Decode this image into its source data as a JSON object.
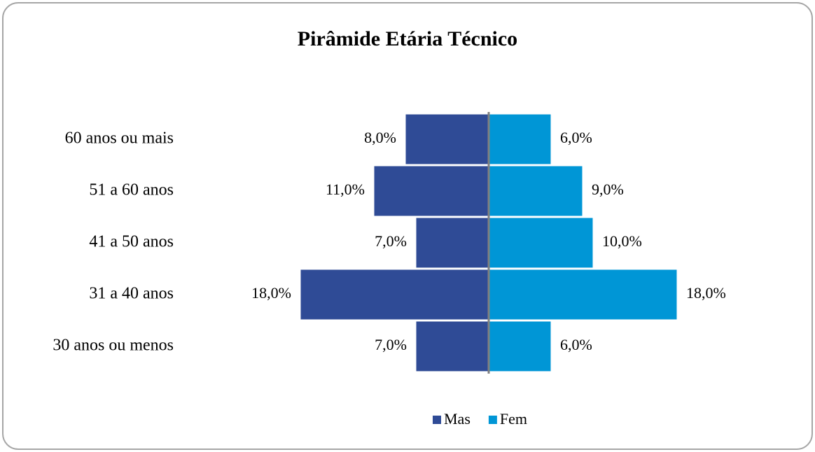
{
  "chart_data": {
    "type": "pyramid",
    "title": "Pirâmide Etária Técnico",
    "categories": [
      "60 anos ou mais",
      "51 a 60 anos",
      "41 a 50 anos",
      "31 a 40 anos",
      "30 anos ou menos"
    ],
    "series": [
      {
        "name": "Mas",
        "color": "#2f4b96",
        "values": [
          8,
          11,
          7,
          18,
          7
        ],
        "value_labels": [
          "8,0%",
          "11,0%",
          "7,0%",
          "18,0%",
          "7,0%"
        ]
      },
      {
        "name": "Fem",
        "color": "#0096d6",
        "values": [
          6,
          9,
          10,
          18,
          6
        ],
        "value_labels": [
          "6,0%",
          "9,0%",
          "10,0%",
          "18,0%",
          "6,0%"
        ]
      }
    ],
    "legend": "bottom"
  }
}
